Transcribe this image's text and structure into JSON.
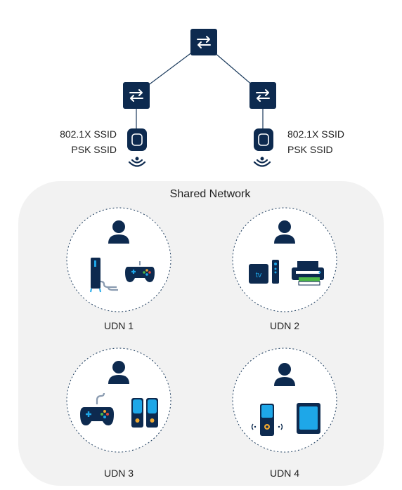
{
  "left_ssid": {
    "line1": "802.1X SSID",
    "line2": "PSK SSID"
  },
  "right_ssid": {
    "line1": "802.1X SSID",
    "line2": "PSK SSID"
  },
  "shared_network": {
    "title": "Shared Network"
  },
  "udns": [
    {
      "label": "UDN 1",
      "devices": [
        "user-icon",
        "pc-tower-icon",
        "game-controller-icon"
      ]
    },
    {
      "label": "UDN 2",
      "devices": [
        "user-icon",
        "tv-box-icon",
        "remote-icon",
        "printer-icon"
      ]
    },
    {
      "label": "UDN 3",
      "devices": [
        "user-icon",
        "game-controller-icon",
        "speakers-icon"
      ]
    },
    {
      "label": "UDN 4",
      "devices": [
        "user-icon",
        "smart-speaker-icon",
        "tablet-icon"
      ]
    }
  ],
  "colors": {
    "navy": "#0d2a4f",
    "accent": "#1ea7e8",
    "panel": "#f2f2f2",
    "line": "#1a3a5c"
  }
}
